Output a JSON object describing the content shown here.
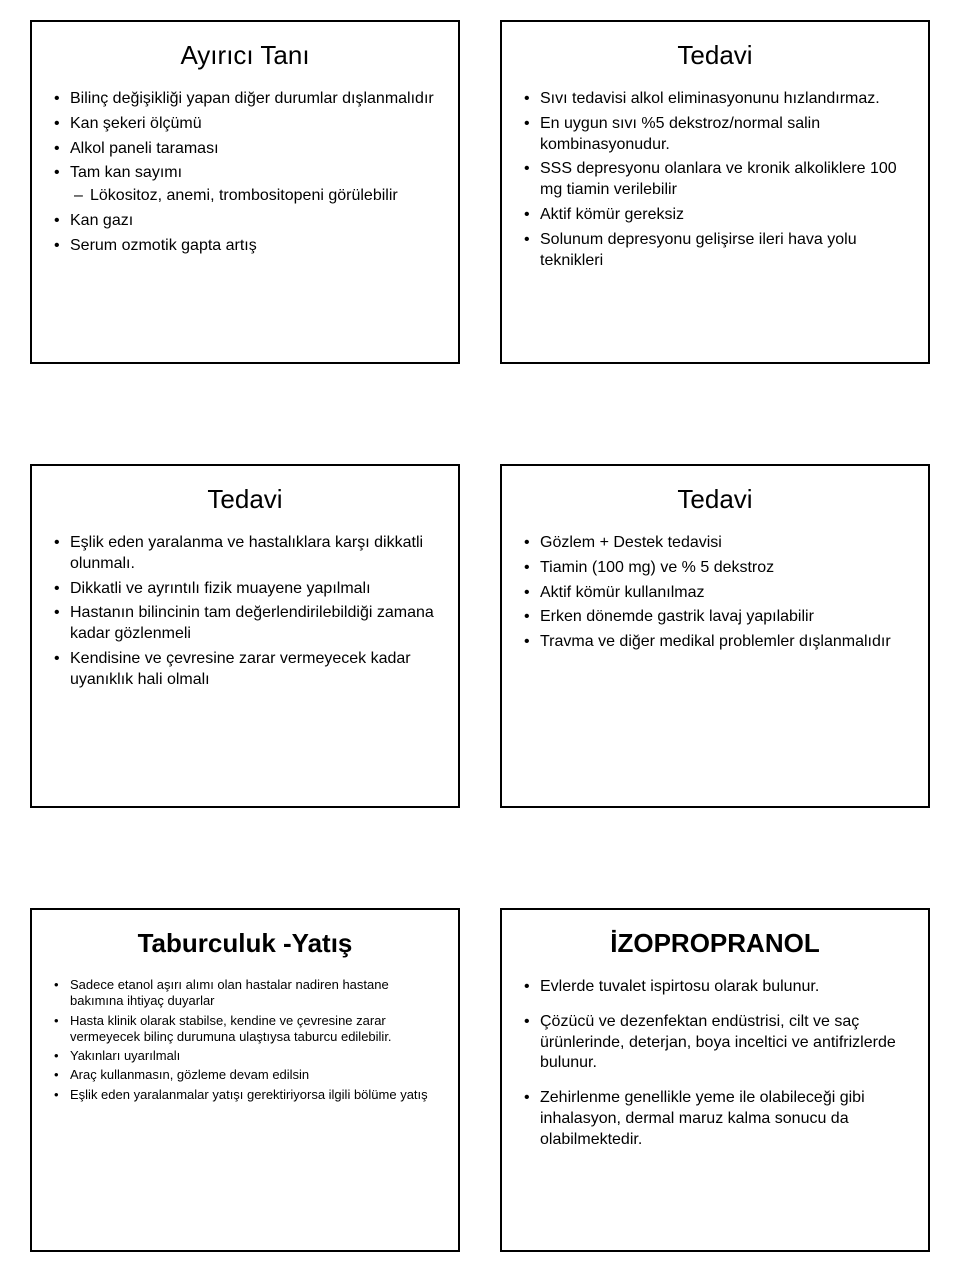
{
  "cards": [
    {
      "title": "Ayırıcı Tanı",
      "title_bold": false,
      "size": "normal",
      "spacing": "tight",
      "items": [
        {
          "text": "Bilinç değişikliği yapan diğer durumlar dışlanmalıdır"
        },
        {
          "text": "Kan şekeri ölçümü"
        },
        {
          "text": "Alkol paneli taraması"
        },
        {
          "text": "Tam kan sayımı",
          "sub": [
            "Lökositoz, anemi, trombositopeni görülebilir"
          ]
        },
        {
          "text": "Kan gazı"
        },
        {
          "text": "Serum ozmotik gapta artış"
        }
      ]
    },
    {
      "title": "Tedavi",
      "title_bold": false,
      "size": "normal",
      "spacing": "tight",
      "items": [
        {
          "text": "Sıvı tedavisi alkol eliminasyonunu hızlandırmaz."
        },
        {
          "text": "En uygun sıvı %5 dekstroz/normal salin kombinasyonudur."
        },
        {
          "text": "SSS depresyonu olanlara ve kronik alkoliklere 100 mg tiamin verilebilir"
        },
        {
          "text": "Aktif kömür gereksiz"
        },
        {
          "text": "Solunum depresyonu gelişirse ileri hava yolu teknikleri"
        }
      ]
    },
    {
      "title": "Tedavi",
      "title_bold": false,
      "size": "normal",
      "spacing": "tight",
      "items": [
        {
          "text": "Eşlik eden yaralanma ve hastalıklara karşı dikkatli olunmalı."
        },
        {
          "text": "Dikkatli ve ayrıntılı fizik muayene yapılmalı"
        },
        {
          "text": "Hastanın bilincinin tam değerlendirilebildiği zamana kadar gözlenmeli"
        },
        {
          "text": "Kendisine ve çevresine zarar vermeyecek kadar uyanıklık hali olmalı"
        }
      ]
    },
    {
      "title": "Tedavi",
      "title_bold": false,
      "size": "normal",
      "spacing": "tight",
      "items": [
        {
          "text": "Gözlem + Destek tedavisi"
        },
        {
          "text": "Tiamin (100 mg) ve % 5 dekstroz"
        },
        {
          "text": "Aktif kömür kullanılmaz"
        },
        {
          "text": "Erken dönemde gastrik lavaj yapılabilir"
        },
        {
          "text": "Travma ve diğer medikal problemler dışlanmalıdır"
        }
      ]
    },
    {
      "title": "Taburculuk -Yatış",
      "title_bold": true,
      "size": "small",
      "spacing": "tight",
      "items": [
        {
          "text": "Sadece etanol aşırı alımı olan hastalar nadiren hastane bakımına ihtiyaç duyarlar"
        },
        {
          "text": "Hasta klinik olarak stabilse, kendine ve çevresine zarar vermeyecek bilinç durumuna ulaştıysa taburcu edilebilir."
        },
        {
          "text": "Yakınları uyarılmalı"
        },
        {
          "text": "Araç kullanmasın, gözleme devam edilsin"
        },
        {
          "text": "Eşlik eden yaralanmalar yatışı gerektiriyorsa ilgili bölüme yatış"
        }
      ]
    },
    {
      "title": "İZOPROPRANOL",
      "title_bold": true,
      "size": "normal",
      "spacing": "spaced",
      "items": [
        {
          "text": "Evlerde tuvalet ispirtosu olarak bulunur."
        },
        {
          "text": "Çözücü ve dezenfektan endüstrisi, cilt ve saç ürünlerinde, deterjan, boya inceltici ve antifrizlerde bulunur."
        },
        {
          "text": "Zehirlenme genellikle yeme ile olabileceği gibi inhalasyon, dermal maruz kalma sonucu da olabilmektedir."
        }
      ]
    }
  ]
}
